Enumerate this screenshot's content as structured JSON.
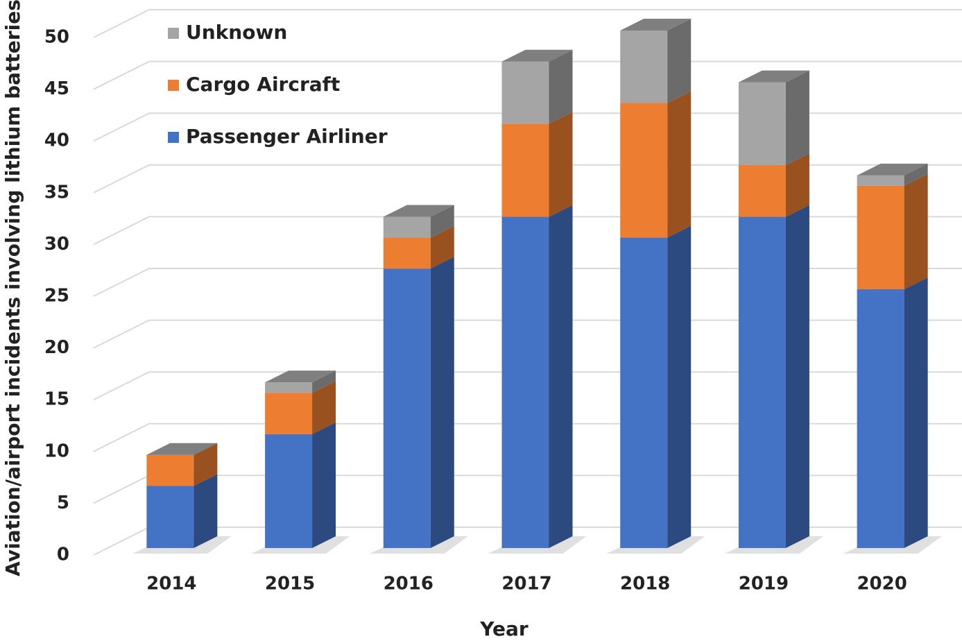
{
  "chart_data": {
    "type": "bar",
    "stacked": true,
    "x_label": "Year",
    "y_label": "Aviation/airport incidents involving lithium batteries",
    "categories": [
      "2014",
      "2015",
      "2016",
      "2017",
      "2018",
      "2019",
      "2020"
    ],
    "series": [
      {
        "name": "Passenger Airliner",
        "color": "#4472c4",
        "values": [
          6,
          11,
          27,
          32,
          30,
          32,
          25
        ]
      },
      {
        "name": "Cargo Aircraft",
        "color": "#ed7d31",
        "values": [
          3,
          4,
          3,
          9,
          13,
          5,
          10
        ]
      },
      {
        "name": "Unknown",
        "color": "#a5a5a5",
        "values": [
          0,
          1,
          2,
          6,
          7,
          8,
          1
        ]
      }
    ],
    "ylim": [
      0,
      50
    ],
    "yticks": [
      0,
      5,
      10,
      15,
      20,
      25,
      30,
      35,
      40,
      45,
      50
    ],
    "grid": true,
    "legend": "top-left"
  }
}
